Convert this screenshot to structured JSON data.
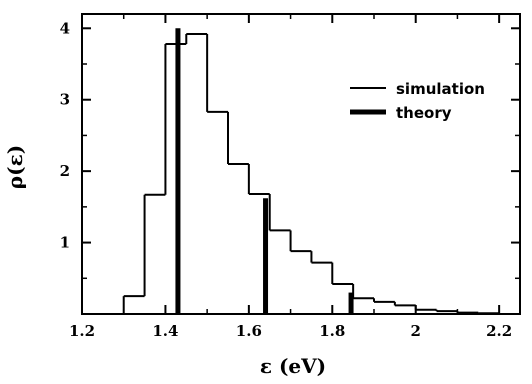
{
  "chart_data": {
    "type": "histogram",
    "xlabel": "ε (eV)",
    "ylabel": "ρ(ε)",
    "xlim": [
      1.2,
      2.25
    ],
    "ylim": [
      0,
      4.2
    ],
    "x_ticks": [
      1.2,
      1.4,
      1.6,
      1.8,
      2.0,
      2.2
    ],
    "x_tick_labels": [
      "1.2",
      "1.4",
      "1.6",
      "1.8",
      "2",
      "2.2"
    ],
    "y_ticks": [
      1,
      2,
      3,
      4
    ],
    "y_tick_labels": [
      "1",
      "2",
      "3",
      "4"
    ],
    "grid": false,
    "legend_position": "top-right",
    "series": [
      {
        "name": "simulation",
        "style": "thin-step",
        "bin_edges": [
          1.3,
          1.35,
          1.4,
          1.45,
          1.5,
          1.55,
          1.6,
          1.65,
          1.7,
          1.75,
          1.8,
          1.85,
          1.9,
          1.95,
          2.0,
          2.05,
          2.1,
          2.15,
          2.2
        ],
        "values": [
          0.25,
          1.67,
          3.78,
          3.92,
          2.83,
          2.1,
          1.68,
          1.17,
          0.88,
          0.72,
          0.42,
          0.22,
          0.17,
          0.12,
          0.06,
          0.04,
          0.02,
          0.01
        ]
      },
      {
        "name": "theory",
        "style": "thick-vertical-lines",
        "x": [
          1.43,
          1.64,
          1.845
        ],
        "values": [
          4.0,
          1.62,
          0.3
        ]
      }
    ],
    "colors": {
      "line": "#000000"
    }
  }
}
